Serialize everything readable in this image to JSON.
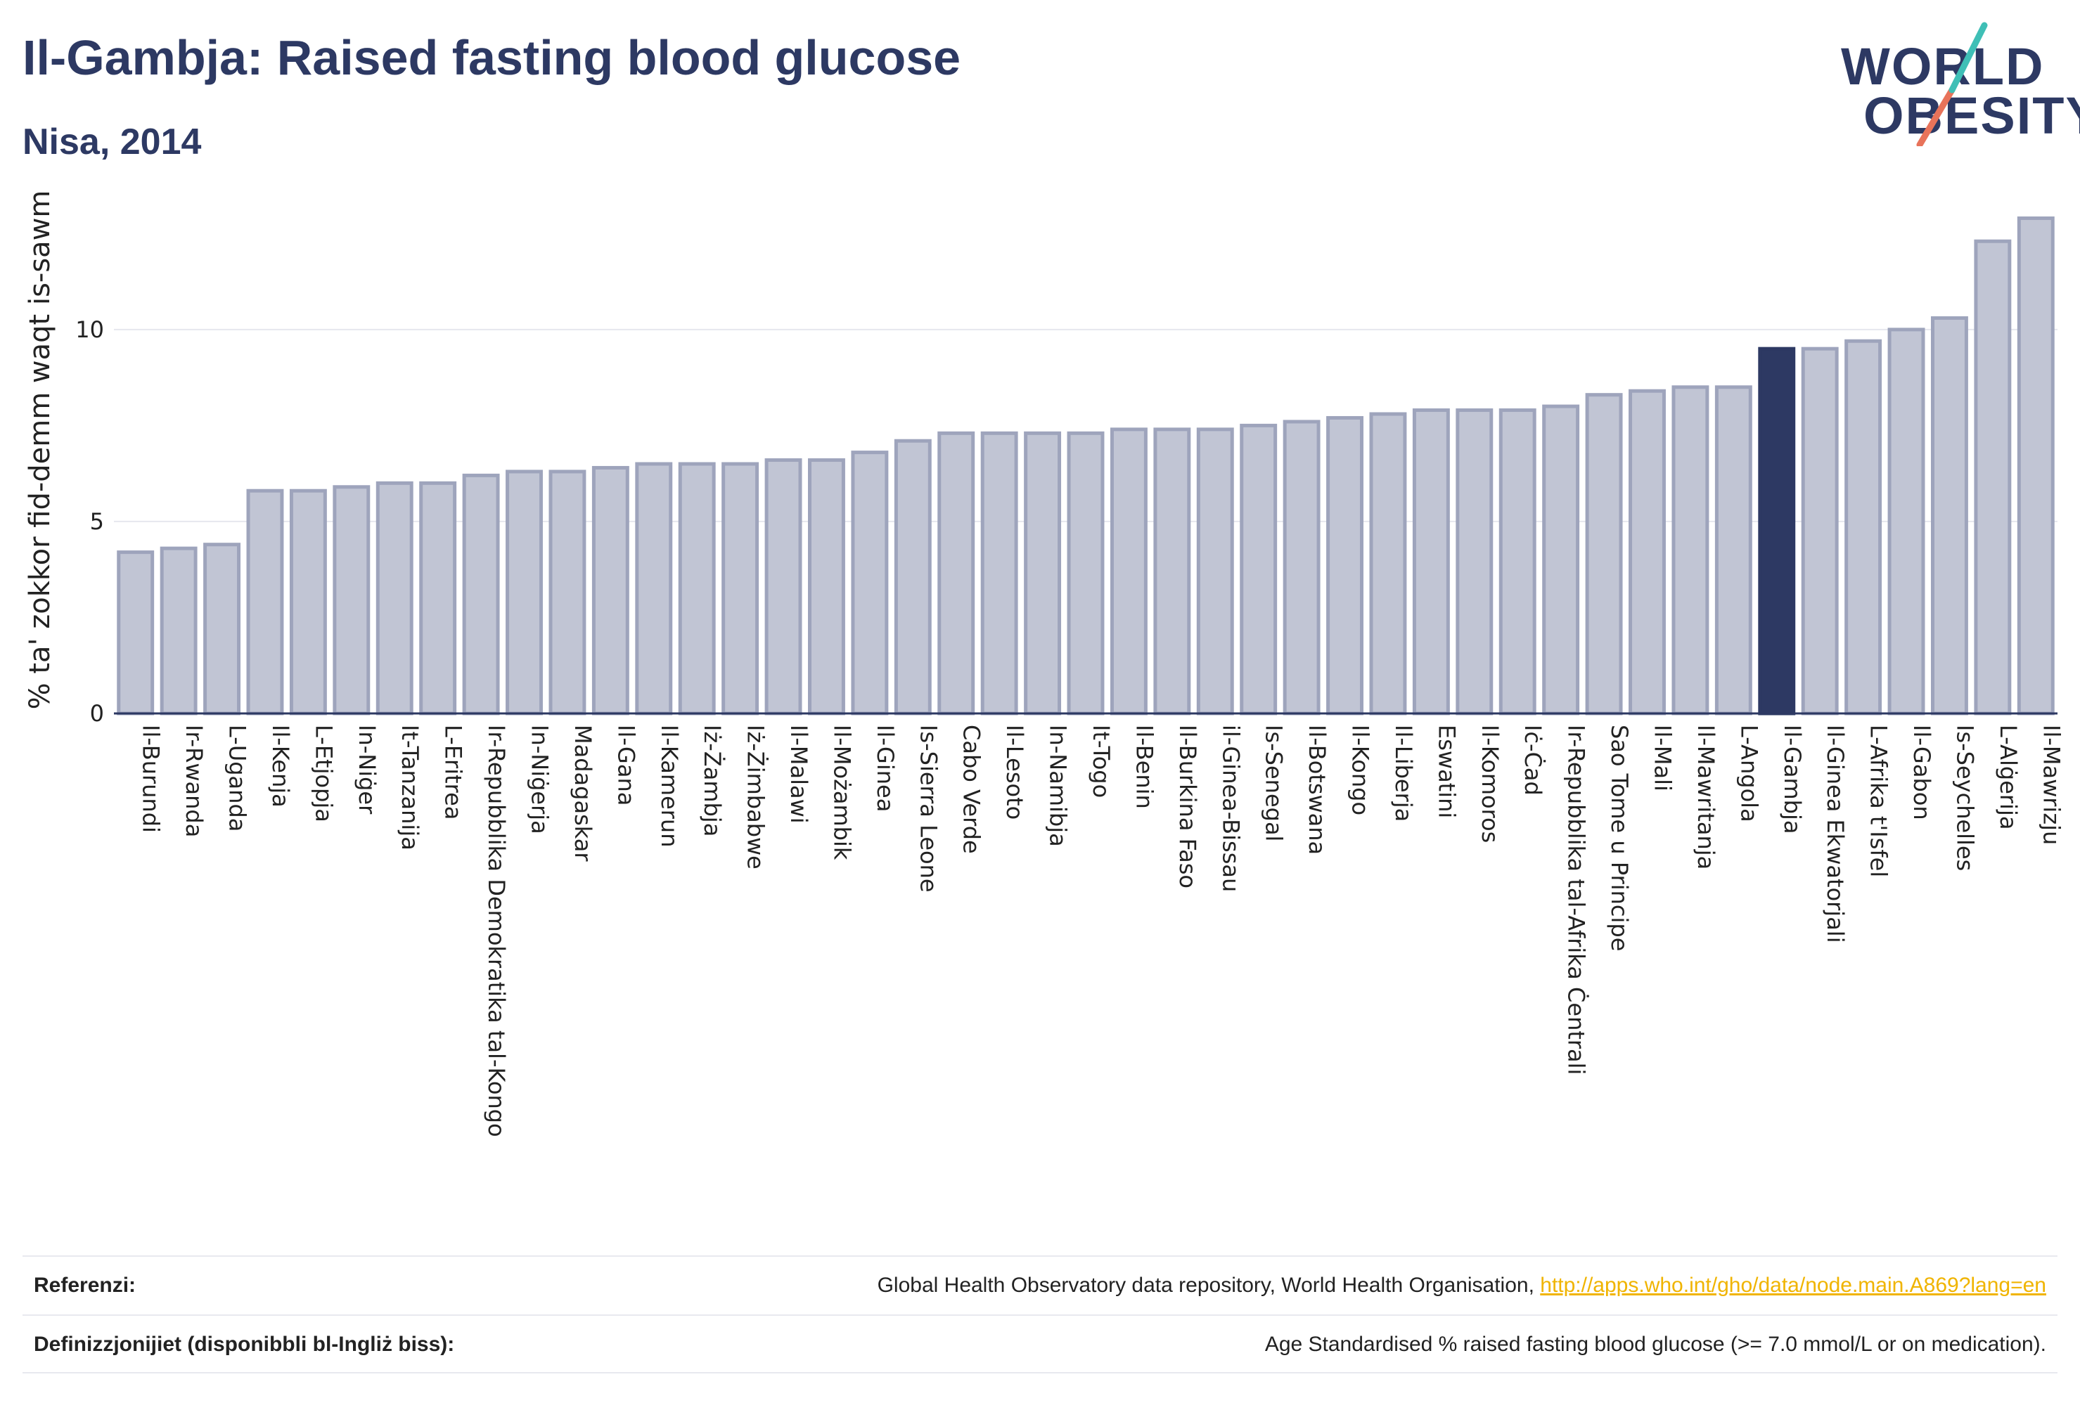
{
  "header": {
    "title": "Il-Gambja: Raised fasting blood glucose",
    "subtitle": "Nisa, 2014"
  },
  "logo": {
    "line1": "WORLD",
    "line2": "OBESITY"
  },
  "colors": {
    "bar": "#c1c5d4",
    "bar_border": "#9ea4bc",
    "highlight": "#2d3963",
    "grid": "#e6e7ee",
    "axis": "#2d3963",
    "logo_slash_teal": "#3fbfb6",
    "logo_slash_red": "#e8735a"
  },
  "chart_data": {
    "type": "bar",
    "ylabel": "% ta' zokkor fid-demm waqt is-sawm",
    "xlabel": "",
    "ylim": [
      0,
      13.0
    ],
    "yticks": [
      0,
      5,
      10
    ],
    "grid": true,
    "highlight": "Il-Gambja",
    "categories": [
      "Il-Burundi",
      "Ir-Rwanda",
      "L-Uganda",
      "Il-Kenja",
      "L-Etjopja",
      "In-Niġer",
      "It-Tanzanija",
      "L-Eritrea",
      "Ir-Repubblika Demokratika tal-Kongo",
      "In-Niġerja",
      "Madagaskar",
      "Il-Gana",
      "Il-Kamerun",
      "Iż-Żambja",
      "Iż-Żimbabwe",
      "Il-Malawi",
      "Il-Możambik",
      "Il-Ginea",
      "Is-Sierra Leone",
      "Cabo Verde",
      "Il-Lesoto",
      "In-Namibja",
      "It-Togo",
      "Il-Benin",
      "Il-Burkina Faso",
      "il-Ginea-Bissau",
      "Is-Senegal",
      "Il-Botswana",
      "Il-Kongo",
      "Il-Liberja",
      "Eswatini",
      "Il-Komoros",
      "Iċ-Ċad",
      "Ir-Repubblika tal-Afrika Ċentrali",
      "Sao Tome u Principe",
      "Il-Mali",
      "Il-Mawritanja",
      "L-Angola",
      "Il-Gambja",
      "Il-Ginea Ekwatorjali",
      "L-Afrika t'Isfel",
      "Il-Gabon",
      "Is-Seychelles",
      "L-Alġerija",
      "Il-Mawrizju"
    ],
    "values": [
      4.2,
      4.3,
      4.4,
      5.8,
      5.8,
      5.9,
      6.0,
      6.0,
      6.2,
      6.3,
      6.3,
      6.4,
      6.5,
      6.5,
      6.5,
      6.6,
      6.6,
      6.8,
      7.1,
      7.3,
      7.3,
      7.3,
      7.3,
      7.4,
      7.4,
      7.4,
      7.5,
      7.6,
      7.7,
      7.8,
      7.9,
      7.9,
      7.9,
      8.0,
      8.3,
      8.4,
      8.5,
      8.5,
      9.5,
      9.5,
      9.7,
      10.0,
      10.3,
      12.3,
      12.9
    ]
  },
  "footer": {
    "ref_label": "Referenzi:",
    "ref_text": "Global Health Observatory data repository, World Health Organisation, ",
    "ref_link": "http://apps.who.int/gho/data/node.main.A869?lang=en",
    "def_label": "Definizzjonijiet (disponibbli bl-Ingliż biss):",
    "def_text": "Age Standardised % raised fasting blood glucose (>= 7.0 mmol/L or on medication)."
  }
}
